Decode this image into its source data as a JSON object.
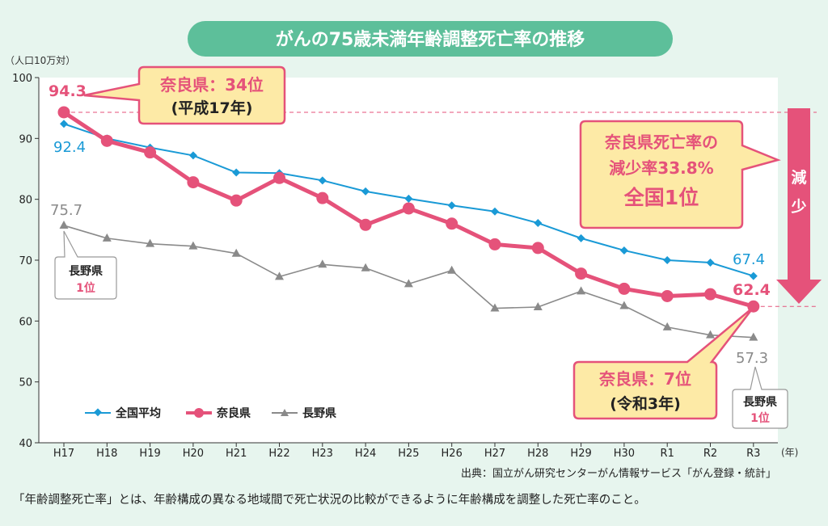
{
  "title": "がんの75歳未満年齢調整死亡率の推移",
  "unit_label": "（人口10万対）",
  "x_unit_label": "(年)",
  "source": "出典：国立がん研究センターがん情報サービス「がん登録・統計」",
  "footnote": "「年齢調整死亡率」とは、年齢構成の異なる地域間で死亡状況の比較ができるように年齢構成を調整した死亡率のこと。",
  "callouts": {
    "nara_2005": {
      "line1": "奈良県：34位",
      "line2": "(平成17年)"
    },
    "nara_decline": {
      "line1": "奈良県死亡率の",
      "line2": "減少率33.8%",
      "line3": "全国1位"
    },
    "nara_2021": {
      "line1": "奈良県：7位",
      "line2": "(令和3年)"
    },
    "nagano_2005": {
      "line1": "長野県",
      "line2": "1位"
    },
    "nagano_2021": {
      "line1": "長野県",
      "line2": "1位"
    },
    "arrow_label": "減少"
  },
  "annotations": {
    "nara_start": "94.3",
    "nara_end": "62.4",
    "national_start": "92.4",
    "national_end": "67.4",
    "nagano_start": "75.7",
    "nagano_end": "57.3"
  },
  "colors": {
    "background": "#e7f5ee",
    "title_bg": "#5dbf9a",
    "national": "#1a9ad6",
    "nara": "#e5527a",
    "nagano": "#8a8a8a",
    "callout_bg": "#fdeaa6",
    "callout_border": "#e5527a",
    "arrow": "#e5527a"
  },
  "chart_data": {
    "type": "line",
    "categories": [
      "H17",
      "H18",
      "H19",
      "H20",
      "H21",
      "H22",
      "H23",
      "H24",
      "H25",
      "H26",
      "H27",
      "H28",
      "H29",
      "H30",
      "R1",
      "R2",
      "R3"
    ],
    "ylim": [
      40,
      100
    ],
    "yticks": [
      40,
      50,
      60,
      70,
      80,
      90,
      100
    ],
    "grid": false,
    "legend_position": "bottom-left",
    "series": [
      {
        "name": "全国平均",
        "marker": "diamond",
        "values": [
          92.4,
          90.0,
          88.5,
          87.2,
          84.4,
          84.3,
          83.1,
          81.3,
          80.1,
          79.0,
          78.0,
          76.1,
          73.6,
          71.6,
          70.0,
          69.6,
          67.4
        ]
      },
      {
        "name": "奈良県",
        "marker": "circle",
        "values": [
          94.3,
          89.6,
          87.7,
          82.8,
          79.8,
          83.5,
          80.2,
          75.8,
          78.5,
          76.0,
          72.6,
          72.0,
          67.8,
          65.3,
          64.1,
          64.4,
          62.4
        ]
      },
      {
        "name": "長野県",
        "marker": "triangle",
        "values": [
          75.7,
          73.6,
          72.7,
          72.3,
          71.1,
          67.3,
          69.3,
          68.7,
          66.1,
          68.3,
          62.1,
          62.3,
          64.9,
          62.5,
          59.0,
          57.7,
          57.3
        ]
      }
    ]
  }
}
